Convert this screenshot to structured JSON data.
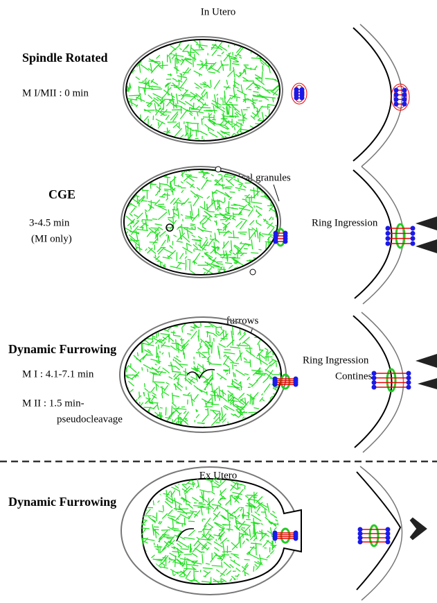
{
  "header": {
    "title": "In Utero"
  },
  "panels": [
    {
      "title": "Spindle Rotated",
      "lines": [
        "M I/MII :  0 min"
      ]
    },
    {
      "title": "CGE",
      "lines": [
        "3-4.5 min",
        "(MI only)"
      ],
      "callout": "cortical granules",
      "side_label": [
        "Ring Ingression"
      ]
    },
    {
      "title": "Dynamic Furrowing",
      "lines": [
        "M I : 4.1-7.1 min",
        "M II : 1.5 min-",
        "pseudocleavage"
      ],
      "callout": "furrows",
      "side_label": [
        "Ring Ingression",
        "Contines"
      ]
    }
  ],
  "ex_utero": {
    "title": "Ex Utero",
    "panel_title": "Dynamic Furrowing"
  }
}
